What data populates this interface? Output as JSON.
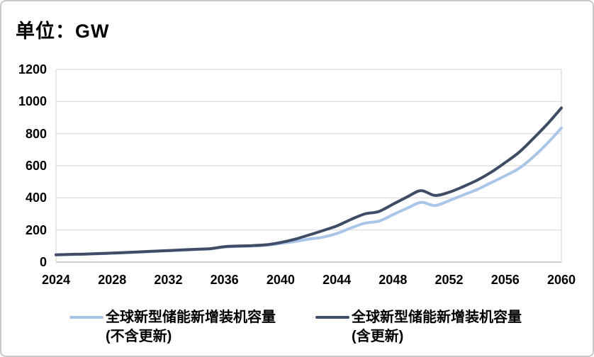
{
  "page": {
    "title": "单位：GW"
  },
  "chart_data": {
    "type": "line",
    "title": "单位：GW",
    "unit": "GW",
    "xlim": [
      2024,
      2060
    ],
    "ylim": [
      0,
      1200
    ],
    "grid": "horizontal",
    "legend_position": "bottom",
    "x_ticks": [
      2024,
      2028,
      2032,
      2036,
      2040,
      2044,
      2048,
      2052,
      2056,
      2060
    ],
    "y_ticks": [
      0,
      200,
      400,
      600,
      800,
      1000,
      1200
    ],
    "x": [
      2024,
      2025,
      2026,
      2027,
      2028,
      2029,
      2030,
      2031,
      2032,
      2033,
      2034,
      2035,
      2036,
      2037,
      2038,
      2039,
      2040,
      2041,
      2042,
      2043,
      2044,
      2045,
      2046,
      2047,
      2048,
      2049,
      2050,
      2051,
      2052,
      2053,
      2054,
      2055,
      2056,
      2057,
      2058,
      2059,
      2060
    ],
    "series": [
      {
        "name": "全球新型储能新增装机容量 (不含更新)",
        "label_line1": "全球新型储能新增装机容量",
        "label_line2": "(不含更新)",
        "color": "#a9c6e8",
        "values": [
          45,
          47,
          49,
          52,
          55,
          58,
          62,
          66,
          70,
          74,
          78,
          82,
          94,
          97,
          100,
          105,
          116,
          128,
          143,
          155,
          178,
          212,
          242,
          255,
          295,
          335,
          372,
          352,
          383,
          418,
          452,
          495,
          538,
          585,
          655,
          740,
          835
        ]
      },
      {
        "name": "全球新型储能新增装机容量 (含更新)",
        "label_line1": "全球新型储能新增装机容量",
        "label_line2": "(含更新)",
        "color": "#3e4d65",
        "values": [
          45,
          48,
          50,
          53,
          56,
          60,
          64,
          68,
          72,
          76,
          80,
          84,
          96,
          100,
          103,
          108,
          122,
          142,
          168,
          196,
          225,
          265,
          300,
          315,
          360,
          405,
          445,
          415,
          435,
          470,
          510,
          560,
          620,
          685,
          770,
          860,
          960
        ]
      }
    ],
    "colors": {
      "gridline": "#d9d9d9",
      "axis_line": "#bfbfbf",
      "plot_border": "#d9d9d9",
      "text": "#000000"
    }
  }
}
